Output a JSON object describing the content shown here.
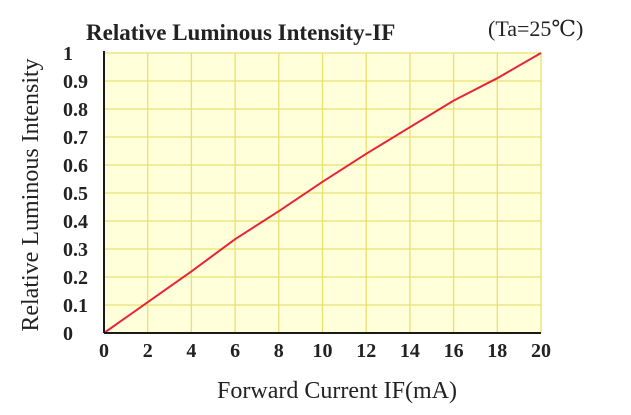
{
  "chart_data": {
    "type": "line",
    "title": "Relative Luminous Intensity-IF",
    "condition": "(Ta=25℃)",
    "xlabel": "Forward Current IF(mA)",
    "ylabel": "Relative Luminous Intensity",
    "xlim": [
      0,
      20
    ],
    "ylim": [
      0,
      1
    ],
    "x_ticks": [
      "0",
      "2",
      "4",
      "6",
      "8",
      "10",
      "12",
      "14",
      "16",
      "18",
      "20"
    ],
    "y_ticks": [
      "0",
      "0.1",
      "0.2",
      "0.3",
      "0.4",
      "0.5",
      "0.6",
      "0.7",
      "0.8",
      "0.9",
      "1"
    ],
    "grid": true,
    "legend": "none",
    "series": [
      {
        "x": [
          0,
          2,
          4,
          6,
          8,
          10,
          12,
          14,
          16,
          18,
          20
        ],
        "y": [
          0,
          0.11,
          0.22,
          0.335,
          0.435,
          0.54,
          0.64,
          0.735,
          0.83,
          0.91,
          1.0
        ]
      }
    ],
    "colors": {
      "plot_background": "#ffffd9",
      "grid": "#e8e070",
      "axis": "#1a1a1a",
      "line": "#e8233a"
    }
  }
}
